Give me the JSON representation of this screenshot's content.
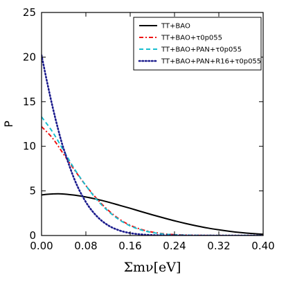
{
  "chart_data": {
    "type": "line",
    "xlabel": "Σmν[eV]",
    "ylabel": "P",
    "xlim": [
      0.0,
      0.4
    ],
    "ylim": [
      0,
      25
    ],
    "xticks": [
      "0.00",
      "0.08",
      "0.16",
      "0.24",
      "0.32",
      "0.40"
    ],
    "yticks": [
      "0",
      "5",
      "10",
      "15",
      "20",
      "25"
    ],
    "xtick_values": [
      0.0,
      0.08,
      0.16,
      0.24,
      0.32,
      0.4
    ],
    "ytick_values": [
      0,
      5,
      10,
      15,
      20,
      25
    ],
    "grid": false,
    "legend_position": "top-right",
    "series": [
      {
        "name": "TT+BAO",
        "color": "#000000",
        "style": "solid",
        "x": [
          0.0,
          0.01,
          0.02,
          0.03,
          0.04,
          0.06,
          0.08,
          0.1,
          0.12,
          0.14,
          0.16,
          0.18,
          0.2,
          0.22,
          0.24,
          0.26,
          0.28,
          0.3,
          0.32,
          0.34,
          0.36,
          0.38,
          0.4
        ],
        "y": [
          4.55,
          4.62,
          4.66,
          4.68,
          4.65,
          4.52,
          4.32,
          4.06,
          3.75,
          3.4,
          3.05,
          2.68,
          2.32,
          1.98,
          1.65,
          1.35,
          1.08,
          0.84,
          0.64,
          0.47,
          0.33,
          0.22,
          0.14
        ]
      },
      {
        "name": "TT+BAO+τ0p055",
        "color": "#ee1111",
        "style": "dashdot",
        "x": [
          0.0,
          0.02,
          0.04,
          0.06,
          0.08,
          0.1,
          0.12,
          0.14,
          0.16,
          0.18,
          0.2,
          0.22,
          0.24,
          0.26,
          0.28,
          0.3,
          0.32,
          0.34,
          0.36,
          0.4
        ],
        "y": [
          12.2,
          10.9,
          9.1,
          7.3,
          5.6,
          4.1,
          2.85,
          1.85,
          1.15,
          0.68,
          0.38,
          0.2,
          0.1,
          0.05,
          0.02,
          0.01,
          0.0,
          0.0,
          0.0,
          0.0
        ]
      },
      {
        "name": "TT+BAO+PAN+τ0p055",
        "color": "#17becf",
        "style": "dashed",
        "x": [
          0.0,
          0.02,
          0.04,
          0.06,
          0.08,
          0.1,
          0.12,
          0.14,
          0.16,
          0.18,
          0.2,
          0.22,
          0.24,
          0.26,
          0.28,
          0.3,
          0.32,
          0.34,
          0.36,
          0.4
        ],
        "y": [
          13.3,
          11.6,
          9.5,
          7.4,
          5.6,
          4.0,
          2.75,
          1.78,
          1.08,
          0.62,
          0.34,
          0.17,
          0.08,
          0.04,
          0.02,
          0.01,
          0.0,
          0.0,
          0.0,
          0.0
        ]
      },
      {
        "name": "TT+BAO+PAN+R16+τ0p055",
        "color": "#1a1a8c",
        "style": "dotted",
        "x": [
          0.0,
          0.01,
          0.02,
          0.03,
          0.04,
          0.06,
          0.08,
          0.1,
          0.12,
          0.14,
          0.16,
          0.18,
          0.2,
          0.22,
          0.24,
          0.26,
          0.28,
          0.32,
          0.36,
          0.4
        ],
        "y": [
          20.2,
          17.2,
          14.4,
          11.9,
          9.7,
          6.2,
          3.75,
          2.15,
          1.15,
          0.58,
          0.27,
          0.12,
          0.05,
          0.02,
          0.01,
          0.0,
          0.0,
          0.0,
          0.0,
          0.0
        ]
      }
    ]
  }
}
